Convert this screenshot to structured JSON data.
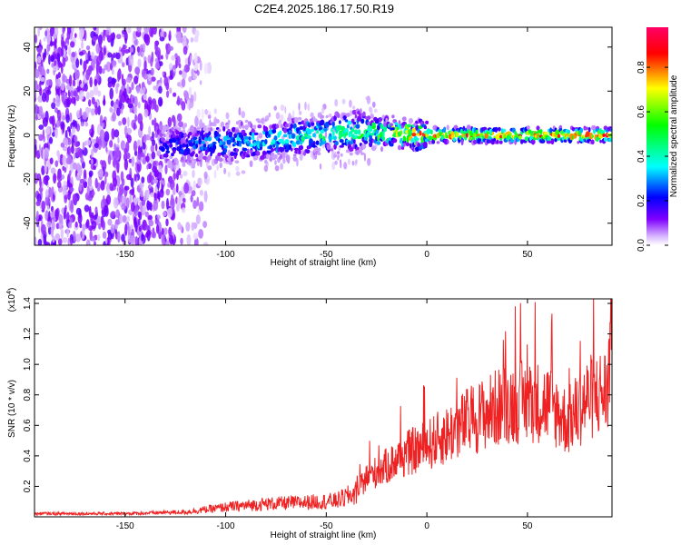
{
  "title": "C2E4.2025.186.17.50.R19",
  "chart_data": [
    {
      "type": "heatmap",
      "xlabel": "Height of straight line (km)",
      "ylabel": "Frequency (Hz)",
      "xlim": [
        -195,
        92
      ],
      "ylim": [
        -50,
        49
      ],
      "xticks": [
        -150,
        -100,
        -50,
        0,
        50
      ],
      "yticks": [
        -40,
        -20,
        0,
        20,
        40
      ],
      "colorbar": {
        "label": "Normalized spectral amplitude",
        "range": [
          0.0,
          0.98
        ],
        "ticks": [
          0.0,
          0.2,
          0.4,
          0.6,
          0.8
        ],
        "colors": [
          "#ffffff",
          "#7f00ff",
          "#0000ff",
          "#00ffff",
          "#00ff00",
          "#ffff00",
          "#ff0000",
          "#ff0066"
        ]
      },
      "ridge": {
        "x": [
          -130,
          -110,
          -90,
          -70,
          -55,
          -40,
          -30,
          -20,
          -10,
          0,
          20,
          50,
          90
        ],
        "center_freq": [
          -5,
          -4,
          -3,
          -2,
          0,
          1,
          2,
          1,
          0,
          0,
          0,
          0,
          0
        ],
        "peak_amplitude": [
          0.25,
          0.35,
          0.4,
          0.45,
          0.5,
          0.55,
          0.6,
          0.75,
          0.9,
          0.95,
          0.95,
          0.95,
          0.95
        ]
      }
    },
    {
      "type": "line",
      "xlabel": "Height of straight line (km)",
      "ylabel": "SNR (10 * v/v)",
      "y_multiplier": "(x10",
      "y_multiplier_exp": "4",
      "y_multiplier_close": ")",
      "xlim": [
        -195,
        92
      ],
      "ylim": [
        0,
        1.43
      ],
      "xticks": [
        -150,
        -100,
        -50,
        0,
        50
      ],
      "yticks": [
        0.2,
        0.4,
        0.6,
        0.8,
        1.0,
        1.2,
        1.4
      ],
      "color": "#ee2222",
      "series": [
        {
          "x": [
            -195,
            -150,
            -120,
            -100,
            -80,
            -60,
            -45,
            -35,
            -30,
            -20,
            -10,
            0,
            10,
            20,
            30,
            40,
            50,
            60,
            70,
            80,
            90,
            92
          ],
          "values": [
            0.02,
            0.02,
            0.03,
            0.06,
            0.08,
            0.09,
            0.1,
            0.15,
            0.25,
            0.32,
            0.4,
            0.45,
            0.52,
            0.6,
            0.66,
            0.72,
            0.73,
            0.72,
            0.6,
            0.75,
            0.8,
            1.4
          ]
        }
      ]
    }
  ]
}
